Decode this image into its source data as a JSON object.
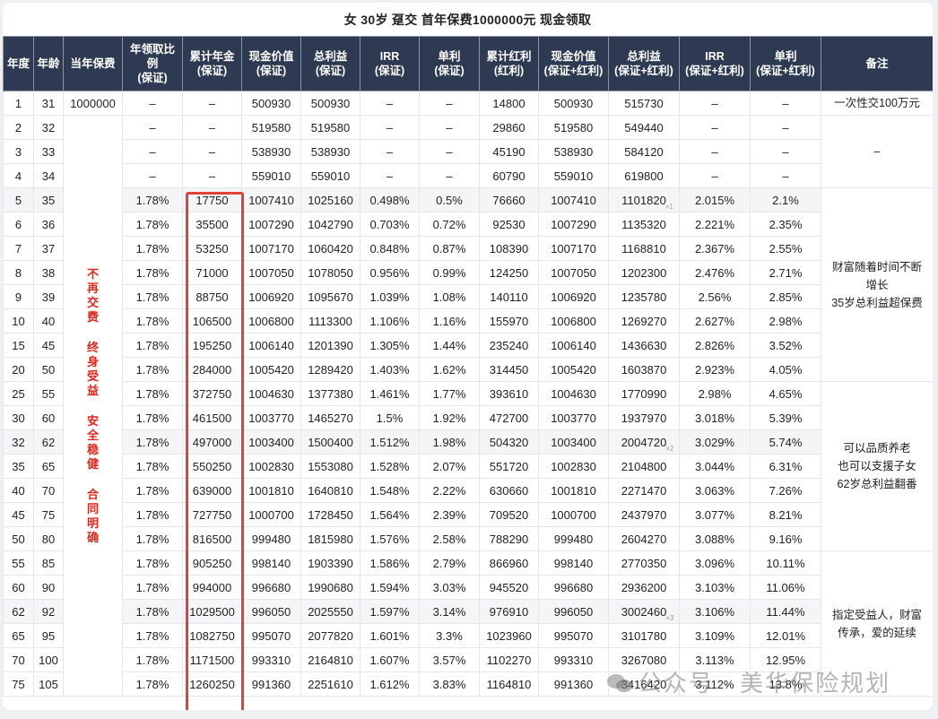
{
  "title": "女 30岁 趸交 首年保费1000000元 现金领取",
  "headers": [
    "年度",
    "年龄",
    "当年保费",
    "年领取比例(保证)",
    "累计年金(保证)",
    "现金价值(保证)",
    "总利益(保证)",
    "IRR(保证)",
    "单利(保证)",
    "累计红利(红利)",
    "现金价值(保证+红利)",
    "总利益(保证+红利)",
    "IRR(保证+红利)",
    "单利(保证+红利)",
    "备注"
  ],
  "header_lines": [
    [
      "年度"
    ],
    [
      "年龄"
    ],
    [
      "当年保费"
    ],
    [
      "年领取比",
      "例",
      "(保证)"
    ],
    [
      "累计年金",
      "(保证)"
    ],
    [
      "现金价值",
      "(保证)"
    ],
    [
      "总利益",
      "(保证)"
    ],
    [
      "IRR",
      "(保证)"
    ],
    [
      "单利",
      "(保证)"
    ],
    [
      "累计红利",
      "(红利)"
    ],
    [
      "现金价值",
      "(保证+红利)"
    ],
    [
      "总利益",
      "(保证+红利)"
    ],
    [
      "IRR",
      "(保证+红利)"
    ],
    [
      "单利",
      "(保证+红利)"
    ],
    [
      "备注"
    ]
  ],
  "premium_first_row": "1000000",
  "slogan_groups": [
    [
      "不",
      "再",
      "交",
      "费"
    ],
    [
      "终",
      "身",
      "受",
      "益"
    ],
    [
      "安",
      "全",
      "稳",
      "健"
    ],
    [
      "合",
      "同",
      "明",
      "确"
    ]
  ],
  "rows": [
    {
      "year": "1",
      "age": "31",
      "ratio": "–",
      "annuity": "–",
      "cv": "500930",
      "total": "500930",
      "irr": "–",
      "simple": "–",
      "bonus": "14800",
      "cv2": "500930",
      "total2": "515730",
      "irr2": "–",
      "simple2": "–"
    },
    {
      "year": "2",
      "age": "32",
      "ratio": "–",
      "annuity": "–",
      "cv": "519580",
      "total": "519580",
      "irr": "–",
      "simple": "–",
      "bonus": "29860",
      "cv2": "519580",
      "total2": "549440",
      "irr2": "–",
      "simple2": "–"
    },
    {
      "year": "3",
      "age": "33",
      "ratio": "–",
      "annuity": "–",
      "cv": "538930",
      "total": "538930",
      "irr": "–",
      "simple": "–",
      "bonus": "45190",
      "cv2": "538930",
      "total2": "584120",
      "irr2": "–",
      "simple2": "–"
    },
    {
      "year": "4",
      "age": "34",
      "ratio": "–",
      "annuity": "–",
      "cv": "559010",
      "total": "559010",
      "irr": "–",
      "simple": "–",
      "bonus": "60790",
      "cv2": "559010",
      "total2": "619800",
      "irr2": "–",
      "simple2": "–"
    },
    {
      "year": "5",
      "age": "35",
      "ratio": "1.78%",
      "annuity": "17750",
      "cv": "1007410",
      "total": "1025160",
      "irr": "0.498%",
      "simple": "0.5%",
      "bonus": "76660",
      "cv2": "1007410",
      "total2": "1101820",
      "irr2": "2.015%",
      "simple2": "2.1%",
      "mark": "×1"
    },
    {
      "year": "6",
      "age": "36",
      "ratio": "1.78%",
      "annuity": "35500",
      "cv": "1007290",
      "total": "1042790",
      "irr": "0.703%",
      "simple": "0.72%",
      "bonus": "92530",
      "cv2": "1007290",
      "total2": "1135320",
      "irr2": "2.221%",
      "simple2": "2.35%"
    },
    {
      "year": "7",
      "age": "37",
      "ratio": "1.78%",
      "annuity": "53250",
      "cv": "1007170",
      "total": "1060420",
      "irr": "0.848%",
      "simple": "0.87%",
      "bonus": "108390",
      "cv2": "1007170",
      "total2": "1168810",
      "irr2": "2.367%",
      "simple2": "2.55%"
    },
    {
      "year": "8",
      "age": "38",
      "ratio": "1.78%",
      "annuity": "71000",
      "cv": "1007050",
      "total": "1078050",
      "irr": "0.956%",
      "simple": "0.99%",
      "bonus": "124250",
      "cv2": "1007050",
      "total2": "1202300",
      "irr2": "2.476%",
      "simple2": "2.71%"
    },
    {
      "year": "9",
      "age": "39",
      "ratio": "1.78%",
      "annuity": "88750",
      "cv": "1006920",
      "total": "1095670",
      "irr": "1.039%",
      "simple": "1.08%",
      "bonus": "140110",
      "cv2": "1006920",
      "total2": "1235780",
      "irr2": "2.56%",
      "simple2": "2.85%"
    },
    {
      "year": "10",
      "age": "40",
      "ratio": "1.78%",
      "annuity": "106500",
      "cv": "1006800",
      "total": "1113300",
      "irr": "1.106%",
      "simple": "1.16%",
      "bonus": "155970",
      "cv2": "1006800",
      "total2": "1269270",
      "irr2": "2.627%",
      "simple2": "2.98%"
    },
    {
      "year": "15",
      "age": "45",
      "ratio": "1.78%",
      "annuity": "195250",
      "cv": "1006140",
      "total": "1201390",
      "irr": "1.305%",
      "simple": "1.44%",
      "bonus": "235240",
      "cv2": "1006140",
      "total2": "1436630",
      "irr2": "2.826%",
      "simple2": "3.52%"
    },
    {
      "year": "20",
      "age": "50",
      "ratio": "1.78%",
      "annuity": "284000",
      "cv": "1005420",
      "total": "1289420",
      "irr": "1.403%",
      "simple": "1.62%",
      "bonus": "314450",
      "cv2": "1005420",
      "total2": "1603870",
      "irr2": "2.923%",
      "simple2": "4.05%"
    },
    {
      "year": "25",
      "age": "55",
      "ratio": "1.78%",
      "annuity": "372750",
      "cv": "1004630",
      "total": "1377380",
      "irr": "1.461%",
      "simple": "1.77%",
      "bonus": "393610",
      "cv2": "1004630",
      "total2": "1770990",
      "irr2": "2.98%",
      "simple2": "4.65%"
    },
    {
      "year": "30",
      "age": "60",
      "ratio": "1.78%",
      "annuity": "461500",
      "cv": "1003770",
      "total": "1465270",
      "irr": "1.5%",
      "simple": "1.92%",
      "bonus": "472700",
      "cv2": "1003770",
      "total2": "1937970",
      "irr2": "3.018%",
      "simple2": "5.39%"
    },
    {
      "year": "32",
      "age": "62",
      "ratio": "1.78%",
      "annuity": "497000",
      "cv": "1003400",
      "total": "1500400",
      "irr": "1.512%",
      "simple": "1.98%",
      "bonus": "504320",
      "cv2": "1003400",
      "total2": "2004720",
      "irr2": "3.029%",
      "simple2": "5.74%",
      "mark": "×2"
    },
    {
      "year": "35",
      "age": "65",
      "ratio": "1.78%",
      "annuity": "550250",
      "cv": "1002830",
      "total": "1553080",
      "irr": "1.528%",
      "simple": "2.07%",
      "bonus": "551720",
      "cv2": "1002830",
      "total2": "2104800",
      "irr2": "3.044%",
      "simple2": "6.31%"
    },
    {
      "year": "40",
      "age": "70",
      "ratio": "1.78%",
      "annuity": "639000",
      "cv": "1001810",
      "total": "1640810",
      "irr": "1.548%",
      "simple": "2.22%",
      "bonus": "630660",
      "cv2": "1001810",
      "total2": "2271470",
      "irr2": "3.063%",
      "simple2": "7.26%"
    },
    {
      "year": "45",
      "age": "75",
      "ratio": "1.78%",
      "annuity": "727750",
      "cv": "1000700",
      "total": "1728450",
      "irr": "1.564%",
      "simple": "2.39%",
      "bonus": "709520",
      "cv2": "1000700",
      "total2": "2437970",
      "irr2": "3.077%",
      "simple2": "8.21%"
    },
    {
      "year": "50",
      "age": "80",
      "ratio": "1.78%",
      "annuity": "816500",
      "cv": "999480",
      "total": "1815980",
      "irr": "1.576%",
      "simple": "2.58%",
      "bonus": "788290",
      "cv2": "999480",
      "total2": "2604270",
      "irr2": "3.088%",
      "simple2": "9.16%"
    },
    {
      "year": "55",
      "age": "85",
      "ratio": "1.78%",
      "annuity": "905250",
      "cv": "998140",
      "total": "1903390",
      "irr": "1.586%",
      "simple": "2.79%",
      "bonus": "866960",
      "cv2": "998140",
      "total2": "2770350",
      "irr2": "3.096%",
      "simple2": "10.11%"
    },
    {
      "year": "60",
      "age": "90",
      "ratio": "1.78%",
      "annuity": "994000",
      "cv": "996680",
      "total": "1990680",
      "irr": "1.594%",
      "simple": "3.03%",
      "bonus": "945520",
      "cv2": "996680",
      "total2": "2936200",
      "irr2": "3.103%",
      "simple2": "11.06%"
    },
    {
      "year": "62",
      "age": "92",
      "ratio": "1.78%",
      "annuity": "1029500",
      "cv": "996050",
      "total": "2025550",
      "irr": "1.597%",
      "simple": "3.14%",
      "bonus": "976910",
      "cv2": "996050",
      "total2": "3002460",
      "irr2": "3.106%",
      "simple2": "11.44%",
      "mark": "×3"
    },
    {
      "year": "65",
      "age": "95",
      "ratio": "1.78%",
      "annuity": "1082750",
      "cv": "995070",
      "total": "2077820",
      "irr": "1.601%",
      "simple": "3.3%",
      "bonus": "1023960",
      "cv2": "995070",
      "total2": "3101780",
      "irr2": "3.109%",
      "simple2": "12.01%"
    },
    {
      "year": "70",
      "age": "100",
      "ratio": "1.78%",
      "annuity": "1171500",
      "cv": "993310",
      "total": "2164810",
      "irr": "1.607%",
      "simple": "3.57%",
      "bonus": "1102270",
      "cv2": "993310",
      "total2": "3267080",
      "irr2": "3.113%",
      "simple2": "12.95%"
    },
    {
      "year": "75",
      "age": "105",
      "ratio": "1.78%",
      "annuity": "1260250",
      "cv": "991360",
      "total": "2251610",
      "irr": "1.612%",
      "simple": "3.83%",
      "bonus": "1164810",
      "cv2": "991360",
      "total2": "3416420",
      "irr2": "3.112%",
      "simple2": "13.8%"
    }
  ],
  "alt_rows": [
    4,
    14,
    21
  ],
  "notes": [
    {
      "start": 0,
      "span": 1,
      "lines": [
        "一次性交100万元"
      ]
    },
    {
      "start": 1,
      "span": 3,
      "lines": [
        "–"
      ]
    },
    {
      "start": 4,
      "span": 8,
      "lines": [
        "财富随着时间不断",
        "增长",
        "35岁总利益超保费"
      ]
    },
    {
      "start": 12,
      "span": 7,
      "lines": [
        "可以品质养老",
        "也可以支援子女",
        "62岁总利益翻番"
      ]
    },
    {
      "start": 19,
      "span": 6,
      "lines": [
        "指定受益人，财富",
        "传承，爱的延续"
      ]
    }
  ],
  "watermark": "公众号 · 美华保险规划",
  "colors": {
    "header_bg": "#2e3a52",
    "slogan_red": "#e0261b",
    "highlight_box": "#e2403a",
    "alt_row": "#f4f5f7"
  }
}
